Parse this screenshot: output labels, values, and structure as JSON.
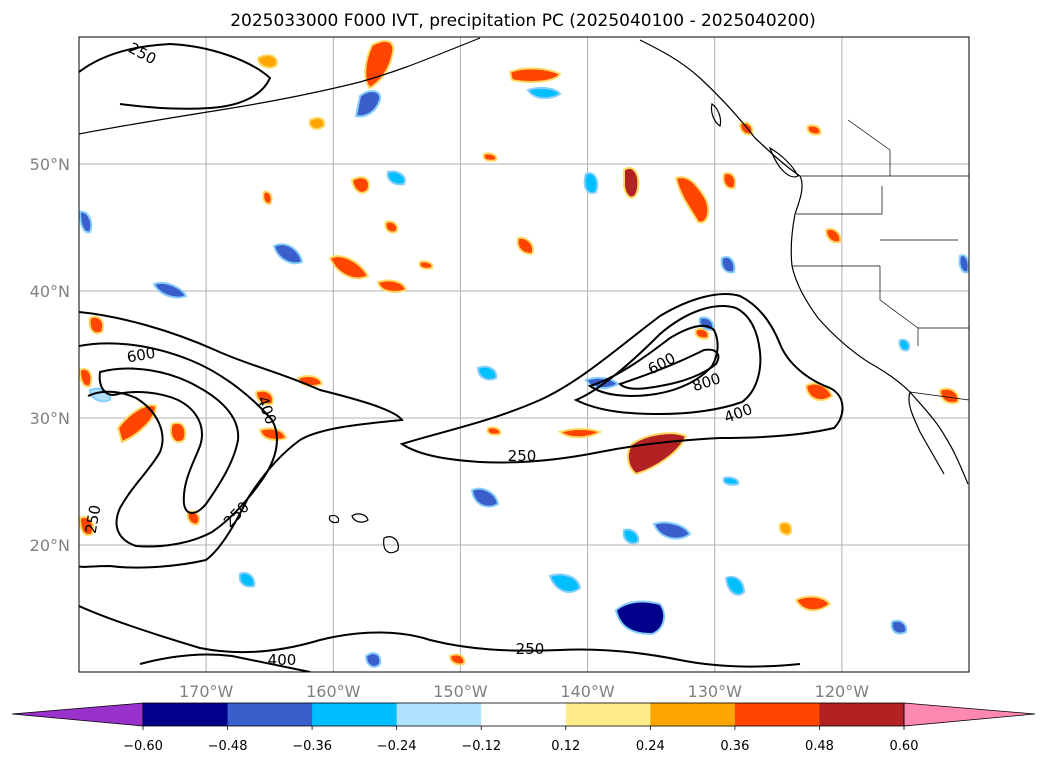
{
  "title": "2025033000 F000 IVT, precipitation PC (2025040100 - 2025040200)",
  "map": {
    "lon_range": [
      -180,
      -110
    ],
    "lat_range": [
      10,
      60
    ],
    "lon_ticks": [
      {
        "value": -170,
        "label": "170°W"
      },
      {
        "value": -160,
        "label": "160°W"
      },
      {
        "value": -150,
        "label": "150°W"
      },
      {
        "value": -140,
        "label": "140°W"
      },
      {
        "value": -130,
        "label": "130°W"
      },
      {
        "value": -120,
        "label": "120°W"
      }
    ],
    "lat_ticks": [
      {
        "value": 20,
        "label": "20°N"
      },
      {
        "value": 30,
        "label": "30°N"
      },
      {
        "value": 40,
        "label": "40°N"
      },
      {
        "value": 50,
        "label": "50°N"
      }
    ],
    "gridlines": true,
    "grid_color": "#b0b0b0",
    "contour_labels": [
      "250",
      "250",
      "600",
      "400",
      "250",
      "250",
      "600",
      "800",
      "400",
      "250",
      "400"
    ]
  },
  "colorbar": {
    "orientation": "horizontal",
    "extend": "both",
    "under_color": "#9932cc",
    "over_color": "#ff88b0",
    "colors": [
      "#00008b",
      "#3a5fcd",
      "#00bfff",
      "#b0e2ff",
      "#ffffff",
      "#ffec8b",
      "#ffa500",
      "#ff4500",
      "#b22222"
    ],
    "ticks": [
      -0.6,
      -0.48,
      -0.36,
      -0.24,
      -0.12,
      0.12,
      0.24,
      0.36,
      0.48,
      0.6
    ],
    "tick_labels": [
      "−0.60",
      "−0.48",
      "−0.36",
      "−0.24",
      "−0.12",
      "0.12",
      "0.24",
      "0.36",
      "0.48",
      "0.60"
    ]
  }
}
